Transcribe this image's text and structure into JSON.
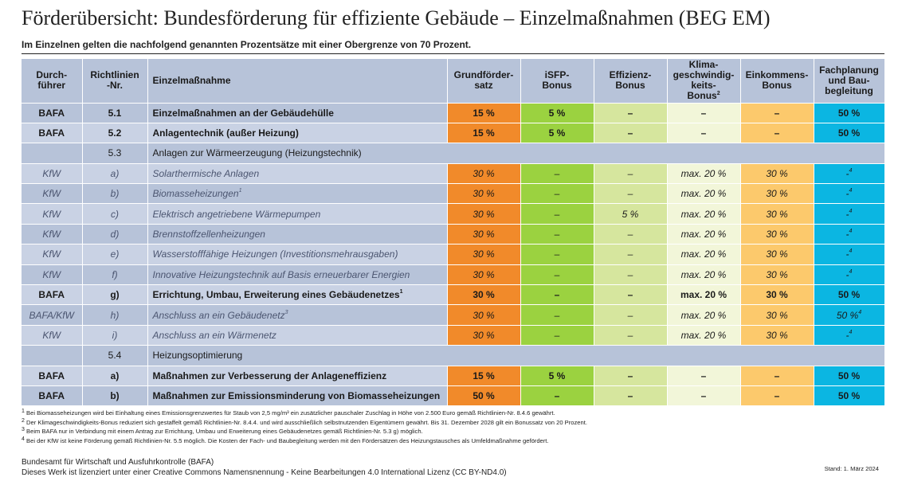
{
  "title": "Förderübersicht: Bundesförderung für effiziente Gebäude – Einzelmaßnahmen (BEG EM)",
  "subtitle": "Im Einzelnen gelten die nachfolgend genannten Prozentsätze mit einer Obergrenze von 70 Prozent.",
  "header": {
    "durch": "Durch-führer",
    "richt": "Richtlinien-Nr.",
    "massnahme": "Einzelmaßnahme",
    "grund": "Grundförder-satz",
    "isfp": "iSFP-Bonus",
    "eff": "Effizienz-Bonus",
    "klima": "Klima-geschwindig-keits-Bonus",
    "klima_sup": "2",
    "eink": "Einkommens-Bonus",
    "fach": "Fachplanung und Bau-begleitung"
  },
  "rows": [
    {
      "durch": "BAFA",
      "nr": "5.1",
      "name": "Einzelmaßnahmen an der Gebäudehülle",
      "sup": "",
      "grund": "15 %",
      "isfp": "5 %",
      "eff": "–",
      "klima": "–",
      "eink": "–",
      "fach": "50 %",
      "fach_sup": ""
    },
    {
      "durch": "BAFA",
      "nr": "5.2",
      "name": "Anlagentechnik (außer Heizung)",
      "sup": "",
      "grund": "15 %",
      "isfp": "5 %",
      "eff": "–",
      "klima": "–",
      "eink": "–",
      "fach": "50 %",
      "fach_sup": ""
    },
    {
      "durch": "",
      "nr": "5.3",
      "name": "Anlagen zur Wärmeerzeugung (Heizungstechnik)"
    },
    {
      "durch": "KfW",
      "nr": "a)",
      "name": "Solarthermische Anlagen",
      "sup": "",
      "grund": "30 %",
      "isfp": "–",
      "eff": "–",
      "klima": "max. 20 %",
      "eink": "30 %",
      "fach": "-",
      "fach_sup": "4"
    },
    {
      "durch": "KfW",
      "nr": "b)",
      "name": "Biomasseheizungen",
      "sup": "1",
      "grund": "30 %",
      "isfp": "–",
      "eff": "–",
      "klima": "max. 20 %",
      "eink": "30 %",
      "fach": "-",
      "fach_sup": "4"
    },
    {
      "durch": "KfW",
      "nr": "c)",
      "name": "Elektrisch angetriebene Wärmepumpen",
      "sup": "",
      "grund": "30 %",
      "isfp": "–",
      "eff": "5 %",
      "klima": "max. 20 %",
      "eink": "30 %",
      "fach": "-",
      "fach_sup": "4"
    },
    {
      "durch": "KfW",
      "nr": "d)",
      "name": "Brennstoffzellenheizungen",
      "sup": "",
      "grund": "30 %",
      "isfp": "–",
      "eff": "–",
      "klima": "max. 20 %",
      "eink": "30 %",
      "fach": "-",
      "fach_sup": "4"
    },
    {
      "durch": "KfW",
      "nr": "e)",
      "name": "Wasserstofffähige Heizungen (Investitionsmehrausgaben)",
      "sup": "",
      "grund": "30 %",
      "isfp": "–",
      "eff": "–",
      "klima": "max. 20 %",
      "eink": "30 %",
      "fach": "-",
      "fach_sup": "4"
    },
    {
      "durch": "KfW",
      "nr": "f)",
      "name": "Innovative Heizungstechnik auf Basis erneuerbarer Energien",
      "sup": "",
      "grund": "30 %",
      "isfp": "–",
      "eff": "–",
      "klima": "max. 20 %",
      "eink": "30 %",
      "fach": "-",
      "fach_sup": "4"
    },
    {
      "durch": "BAFA",
      "nr": "g)",
      "name": "Errichtung, Umbau, Erweiterung eines Gebäudenetzes",
      "sup": "1",
      "grund": "30 %",
      "isfp": "–",
      "eff": "–",
      "klima": "max. 20 %",
      "eink": "30 %",
      "fach": "50 %",
      "fach_sup": ""
    },
    {
      "durch": "BAFA/KfW",
      "nr": "h)",
      "name": "Anschluss an ein Gebäudenetz",
      "sup": "3",
      "grund": "30 %",
      "isfp": "–",
      "eff": "–",
      "klima": "max. 20 %",
      "eink": "30 %",
      "fach": "50 %",
      "fach_sup": "4"
    },
    {
      "durch": "KfW",
      "nr": "i)",
      "name": "Anschluss an ein Wärmenetz",
      "sup": "",
      "grund": "30 %",
      "isfp": "–",
      "eff": "–",
      "klima": "max. 20 %",
      "eink": "30 %",
      "fach": "-",
      "fach_sup": "4"
    },
    {
      "durch": "",
      "nr": "5.4",
      "name": "Heizungsoptimierung"
    },
    {
      "durch": "BAFA",
      "nr": "a)",
      "name": "Maßnahmen zur Verbesserung der Anlageneffizienz",
      "sup": "",
      "grund": "15 %",
      "isfp": "5 %",
      "eff": "–",
      "klima": "–",
      "eink": "–",
      "fach": "50 %",
      "fach_sup": ""
    },
    {
      "durch": "BAFA",
      "nr": "b)",
      "name": "Maßnahmen zur Emissionsminderung von Biomasseheizungen",
      "sup": "",
      "grund": "50 %",
      "isfp": "–",
      "eff": "–",
      "klima": "–",
      "eink": "–",
      "fach": "50 %",
      "fach_sup": ""
    }
  ],
  "footnotes": [
    {
      "num": "1",
      "text": "Bei Biomasseheizungen wird bei Einhaltung eines Emissionsgrenzwertes für Staub von 2,5 mg/m³ ein zusätzlicher pauschaler Zuschlag in Höhe von 2.500 Euro gemäß Richtlinien-Nr. 8.4.6 gewährt."
    },
    {
      "num": "2",
      "text": "Der Klimageschwindigkeits-Bonus reduziert sich gestaffelt gemäß Richtlinien-Nr. 8.4.4. und wird ausschließlich selbstnutzenden Eigentümern gewährt. Bis 31. Dezember 2028 gilt ein Bonussatz von 20 Prozent."
    },
    {
      "num": "3",
      "text": "Beim BAFA nur in Verbindung mit einem Antrag zur Errichtung, Umbau und Erweiterung eines Gebäudenetzes gemäß Richtlinien-Nr. 5.3 g) möglich."
    },
    {
      "num": "4",
      "text": "Bei der KfW ist keine Förderung gemäß Richtlinien-Nr. 5.5 möglich. Die Kosten der Fach- und Baubegleitung werden mit den Fördersätzen des Heizungstausches als Umfeldmaßnahme gefördert."
    }
  ],
  "issuer": "Bundesamt für Wirtschaft und Ausfuhrkontrolle (BAFA)",
  "license": "Dieses Werk ist lizenziert unter einer Creative Commons Namensnennung - Keine Bearbeitungen 4.0 International Lizenz (CC BY-ND4.0)",
  "stand": "Stand: 1. März 2024"
}
